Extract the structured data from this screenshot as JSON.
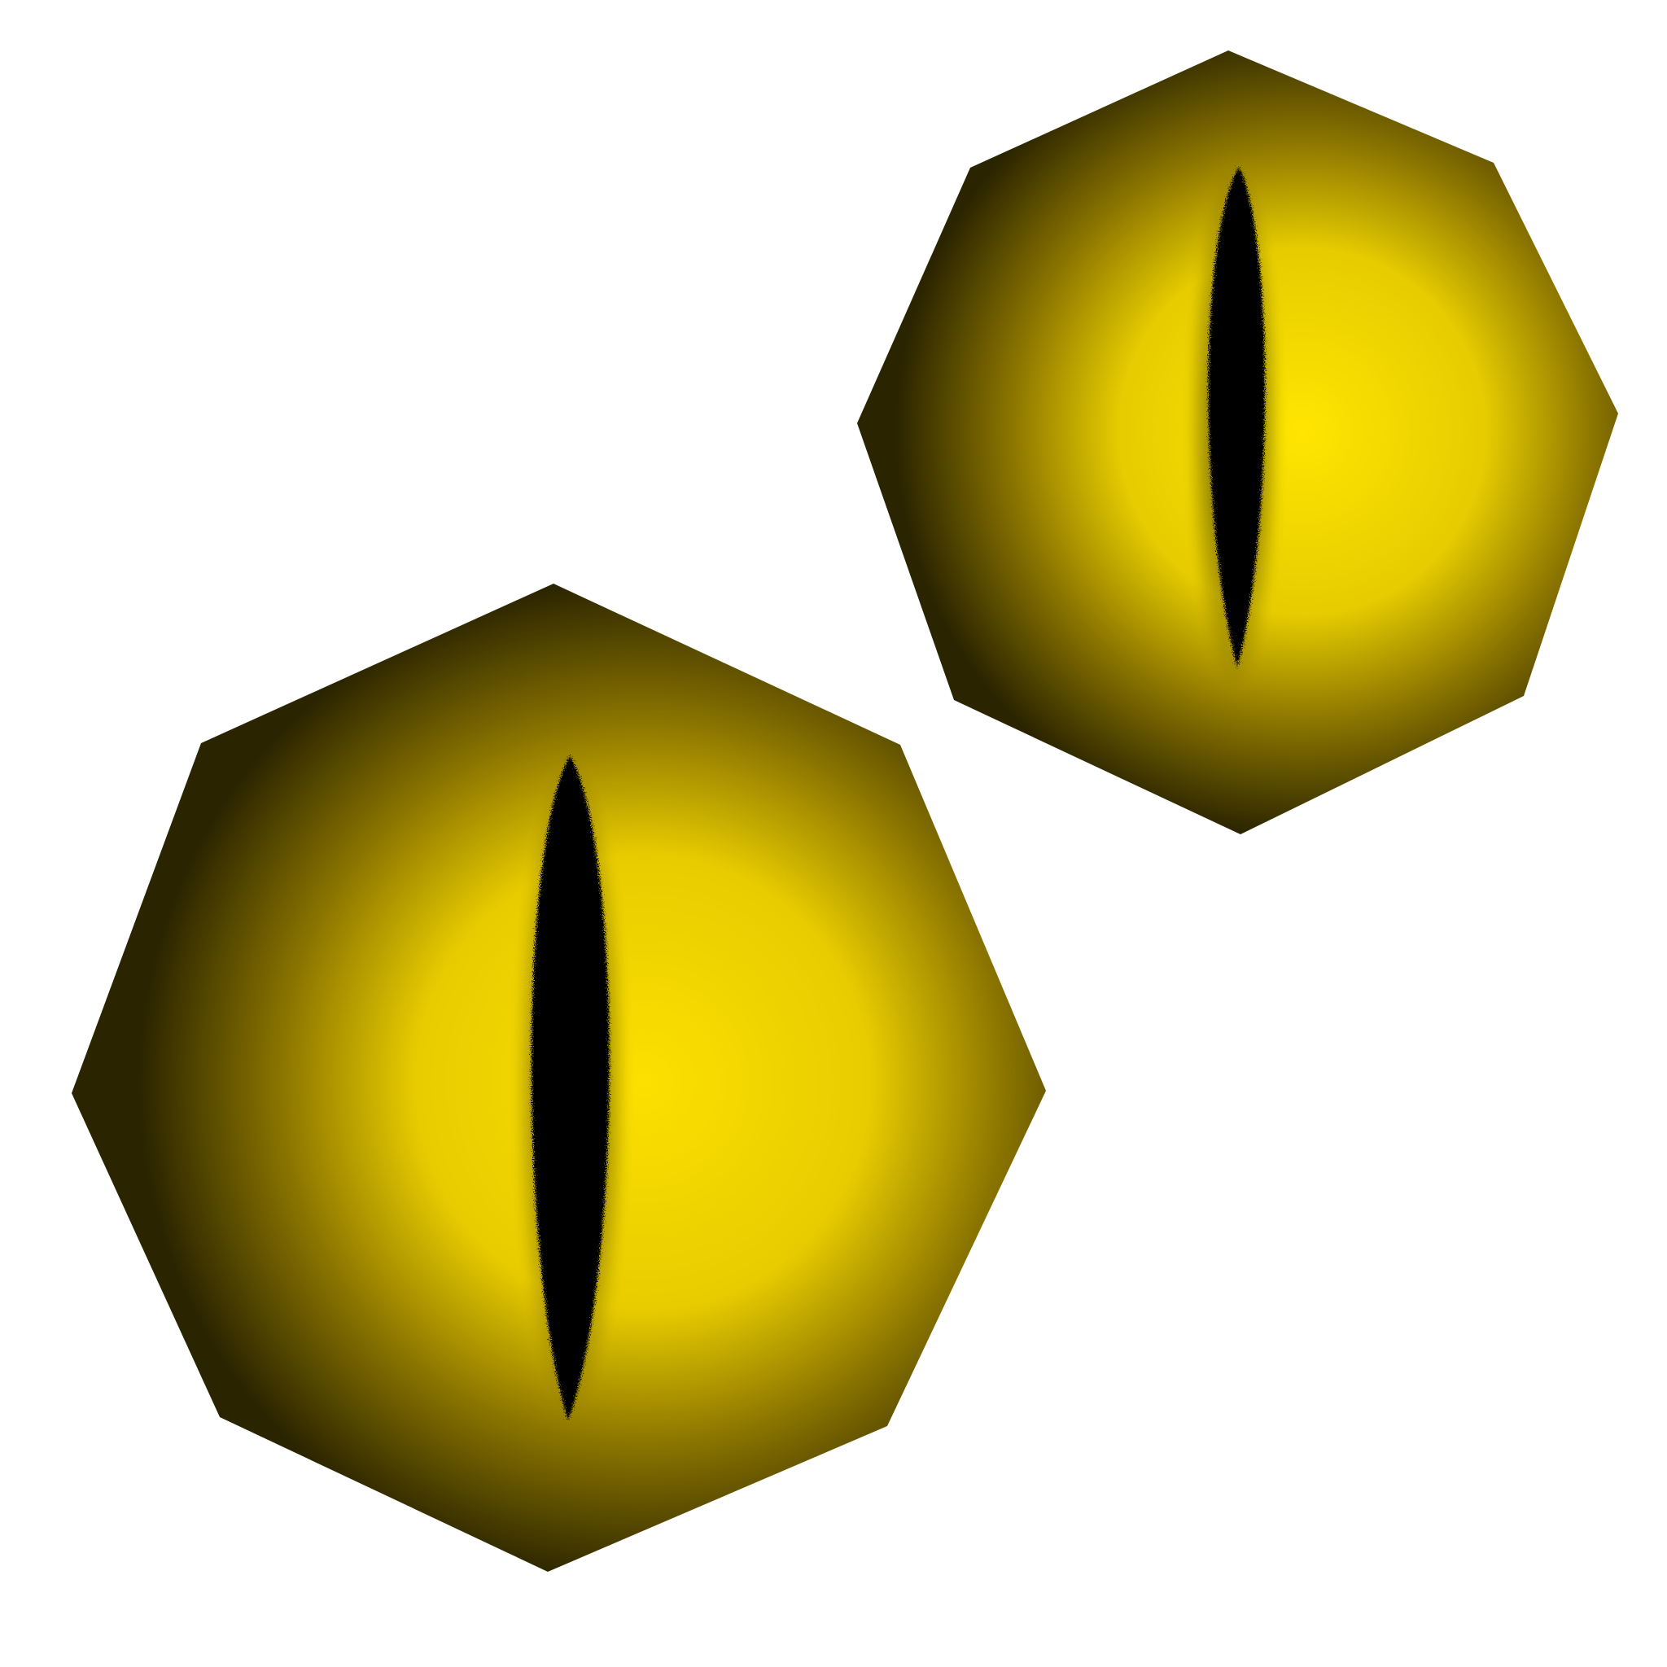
{
  "background_color": "#ffffff",
  "eyes": [
    {
      "name": "large-eye",
      "iris_center_color": "#fce000",
      "iris_mid_color": "#e8cc00",
      "iris_edge_color": "#2a2400",
      "pupil_color": "#000000"
    },
    {
      "name": "small-eye",
      "iris_center_color": "#ffe600",
      "iris_mid_color": "#e6cc00",
      "iris_edge_color": "#2a2400",
      "pupil_color": "#000000"
    }
  ]
}
